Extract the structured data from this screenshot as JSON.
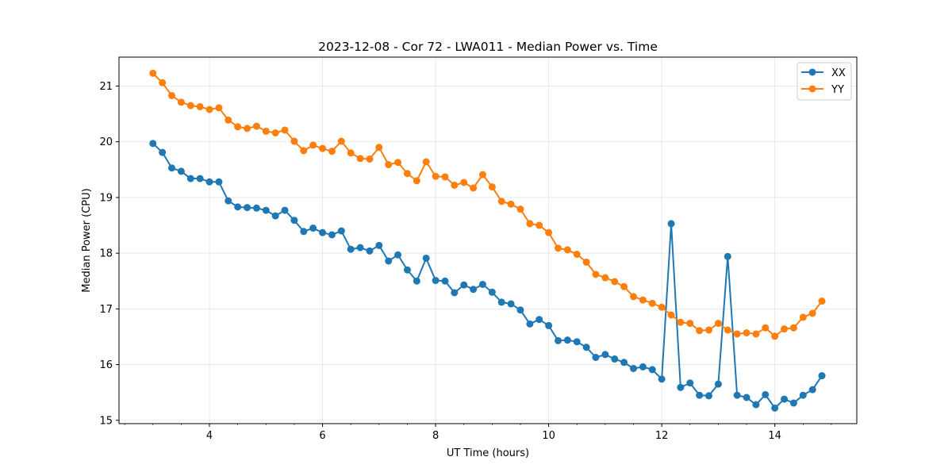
{
  "chart_data": {
    "type": "line",
    "title": "2023-12-08 - Cor 72 - LWA011 - Median Power vs. Time",
    "xlabel": "UT Time (hours)",
    "ylabel": "Median Power (CPU)",
    "xlim": [
      2.4,
      15.45
    ],
    "ylim": [
      14.94,
      21.52
    ],
    "xticks": [
      4,
      6,
      8,
      10,
      12,
      14
    ],
    "xtick_labels": [
      "4",
      "6",
      "8",
      "10",
      "12",
      "14"
    ],
    "yticks": [
      15,
      16,
      17,
      18,
      19,
      20,
      21
    ],
    "ytick_labels": [
      "15",
      "16",
      "17",
      "18",
      "19",
      "20",
      "21"
    ],
    "grid": true,
    "legend_position": "top-right",
    "x": [
      3.0,
      3.167,
      3.333,
      3.5,
      3.667,
      3.833,
      4.0,
      4.167,
      4.333,
      4.5,
      4.667,
      4.833,
      5.0,
      5.167,
      5.333,
      5.5,
      5.667,
      5.833,
      6.0,
      6.167,
      6.333,
      6.5,
      6.667,
      6.833,
      7.0,
      7.167,
      7.333,
      7.5,
      7.667,
      7.833,
      8.0,
      8.167,
      8.333,
      8.5,
      8.667,
      8.833,
      9.0,
      9.167,
      9.333,
      9.5,
      9.667,
      9.833,
      10.0,
      10.167,
      10.333,
      10.5,
      10.667,
      10.833,
      11.0,
      11.167,
      11.333,
      11.5,
      11.667,
      11.833,
      12.0,
      12.167,
      12.333,
      12.5,
      12.667,
      12.833,
      13.0,
      13.167,
      13.333,
      13.5,
      13.667,
      13.833,
      14.0,
      14.167,
      14.333,
      14.5,
      14.667,
      14.833
    ],
    "series": [
      {
        "name": "XX",
        "color": "#1f77b4",
        "values": [
          19.97,
          19.81,
          19.53,
          19.47,
          19.34,
          19.34,
          19.28,
          19.28,
          18.94,
          18.83,
          18.82,
          18.81,
          18.77,
          18.67,
          18.77,
          18.59,
          18.39,
          18.45,
          18.37,
          18.33,
          18.4,
          18.07,
          18.1,
          18.04,
          18.14,
          17.86,
          17.97,
          17.7,
          17.5,
          17.91,
          17.51,
          17.5,
          17.29,
          17.43,
          17.35,
          17.44,
          17.3,
          17.12,
          17.09,
          16.98,
          16.73,
          16.81,
          16.7,
          16.43,
          16.44,
          16.41,
          16.31,
          16.13,
          16.18,
          16.1,
          16.04,
          15.93,
          15.96,
          15.91,
          15.74,
          18.53,
          15.59,
          15.67,
          15.45,
          15.44,
          15.65,
          17.94,
          15.45,
          15.41,
          15.28,
          15.46,
          15.22,
          15.38,
          15.31,
          15.45,
          15.55,
          15.8
        ]
      },
      {
        "name": "YY",
        "color": "#ff7f0e",
        "values": [
          21.23,
          21.06,
          20.83,
          20.71,
          20.65,
          20.63,
          20.58,
          20.61,
          20.39,
          20.27,
          20.24,
          20.28,
          20.19,
          20.16,
          20.21,
          20.01,
          19.84,
          19.94,
          19.88,
          19.83,
          20.01,
          19.8,
          19.7,
          19.69,
          19.9,
          19.59,
          19.63,
          19.43,
          19.3,
          19.64,
          19.38,
          19.37,
          19.22,
          19.27,
          19.17,
          19.41,
          19.19,
          18.93,
          18.88,
          18.79,
          18.53,
          18.5,
          18.37,
          18.09,
          18.06,
          17.98,
          17.84,
          17.62,
          17.56,
          17.49,
          17.4,
          17.22,
          17.16,
          17.1,
          17.03,
          16.89,
          16.76,
          16.74,
          16.61,
          16.62,
          16.74,
          16.62,
          16.55,
          16.57,
          16.55,
          16.66,
          16.51,
          16.64,
          16.66,
          16.85,
          16.92,
          17.14
        ]
      }
    ]
  }
}
